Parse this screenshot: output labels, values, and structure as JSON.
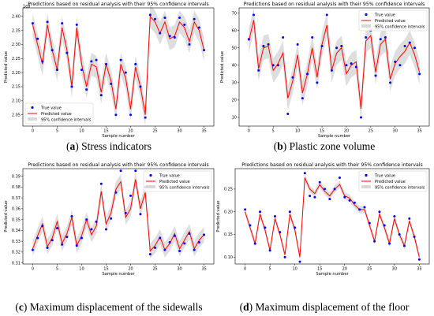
{
  "figure": {
    "captions": [
      {
        "label": "a",
        "text": "Stress indicators"
      },
      {
        "label": "b",
        "text": "Plastic zone volume"
      },
      {
        "label": "c",
        "text": "Maximum displacement of the sidewalls"
      },
      {
        "label": "d",
        "text": "Maximum displacement of the floor"
      }
    ]
  },
  "colors": {
    "true_value": "#0000ff",
    "predicted": "#ff0000",
    "band": "#c8c8c8"
  },
  "chart_data": [
    {
      "type": "line",
      "title": "Predictions based on residual analysis with their 95% confidence intervals",
      "xlabel": "Sample number",
      "ylabel": "Predicted value",
      "offset_label": "1e8",
      "xlim": [
        -2,
        37
      ],
      "ylim": [
        2.01,
        2.43
      ],
      "xticks": [
        0,
        5,
        10,
        15,
        20,
        25,
        30,
        35
      ],
      "yticks": [
        2.05,
        2.1,
        2.15,
        2.2,
        2.25,
        2.3,
        2.35,
        2.4
      ],
      "yticklabels": [
        "2.05",
        "2.10",
        "2.15",
        "2.20",
        "2.25",
        "2.30",
        "2.35",
        "2.40"
      ],
      "legend_position": "lower-left",
      "legend": [
        "True value",
        "Predicted value",
        "95% confidence intervals"
      ],
      "ci_half_width": 0.04,
      "series": [
        {
          "name": "True value",
          "values": [
            2.375,
            2.32,
            2.24,
            2.38,
            2.28,
            2.21,
            2.375,
            2.27,
            2.15,
            2.37,
            2.21,
            2.14,
            2.24,
            2.245,
            2.12,
            2.23,
            2.16,
            2.05,
            2.245,
            2.2,
            2.05,
            2.23,
            2.15,
            2.04,
            2.405,
            2.39,
            2.34,
            2.395,
            2.33,
            2.325,
            2.395,
            2.37,
            2.3,
            2.39,
            2.36,
            2.28
          ]
        },
        {
          "name": "Predicted value",
          "values": [
            2.37,
            2.3,
            2.23,
            2.37,
            2.28,
            2.21,
            2.36,
            2.28,
            2.15,
            2.36,
            2.23,
            2.15,
            2.23,
            2.22,
            2.13,
            2.23,
            2.17,
            2.07,
            2.23,
            2.18,
            2.07,
            2.22,
            2.15,
            2.05,
            2.4,
            2.38,
            2.34,
            2.38,
            2.32,
            2.33,
            2.38,
            2.36,
            2.31,
            2.38,
            2.35,
            2.28
          ]
        }
      ]
    },
    {
      "type": "line",
      "title": "Predictions based on residual analysis with their 95% confidence intervals",
      "xlabel": "Sample number",
      "ylabel": "Predicted value",
      "xlim": [
        -2,
        37
      ],
      "ylim": [
        5,
        73
      ],
      "xticks": [
        0,
        5,
        10,
        15,
        20,
        25,
        30,
        35
      ],
      "yticks": [
        10,
        20,
        30,
        40,
        50,
        60,
        70
      ],
      "yticklabels": [
        "10",
        "20",
        "30",
        "40",
        "50",
        "60",
        "70"
      ],
      "legend_position": "top-right",
      "legend": [
        "True value",
        "Predicted value",
        "95% confidence intervals"
      ],
      "ci_half_width": 7,
      "series": [
        {
          "name": "True value",
          "values": [
            55,
            69,
            37,
            51,
            52,
            40,
            40,
            56,
            12,
            33,
            52,
            21,
            35,
            56,
            30,
            51,
            69,
            37,
            50,
            51,
            40,
            41,
            39,
            10,
            56,
            60,
            34,
            55,
            56,
            30,
            42,
            40,
            51,
            53,
            50,
            35
          ]
        },
        {
          "name": "Predicted value",
          "values": [
            54,
            66,
            38,
            50,
            51,
            37,
            41,
            47,
            21,
            31,
            46,
            24,
            35,
            50,
            33,
            52,
            63,
            37,
            47,
            50,
            35,
            40,
            42,
            15,
            54,
            57,
            36,
            52,
            55,
            32,
            41,
            45,
            48,
            53,
            46,
            36
          ]
        }
      ]
    },
    {
      "type": "line",
      "title": "Predictions based on residual analysis with their 95% confidence intervals",
      "xlabel": "Sample number",
      "ylabel": "Predicted value",
      "xlim": [
        -2,
        37
      ],
      "ylim": [
        0.309,
        0.397
      ],
      "xticks": [
        0,
        5,
        10,
        15,
        20,
        25,
        30,
        35
      ],
      "yticks": [
        0.31,
        0.32,
        0.33,
        0.34,
        0.35,
        0.36,
        0.37,
        0.38,
        0.39
      ],
      "yticklabels": [
        "0.31",
        "0.32",
        "0.33",
        "0.34",
        "0.35",
        "0.36",
        "0.37",
        "0.38",
        "0.39"
      ],
      "legend_position": "top-right",
      "legend": [
        "True value",
        "Predicted value",
        "95% confidence intervals"
      ],
      "ci_half_width": 0.007,
      "series": [
        {
          "name": "True value",
          "values": [
            0.322,
            0.333,
            0.344,
            0.324,
            0.331,
            0.342,
            0.327,
            0.334,
            0.353,
            0.326,
            0.333,
            0.35,
            0.341,
            0.348,
            0.383,
            0.341,
            0.351,
            0.375,
            0.395,
            0.356,
            0.372,
            0.395,
            0.355,
            0.38,
            0.318,
            0.324,
            0.333,
            0.322,
            0.329,
            0.335,
            0.321,
            0.328,
            0.337,
            0.322,
            0.329,
            0.336
          ]
        },
        {
          "name": "Predicted value",
          "values": [
            0.323,
            0.335,
            0.346,
            0.325,
            0.333,
            0.348,
            0.328,
            0.337,
            0.352,
            0.326,
            0.335,
            0.35,
            0.336,
            0.344,
            0.376,
            0.346,
            0.356,
            0.378,
            0.385,
            0.352,
            0.36,
            0.387,
            0.36,
            0.375,
            0.321,
            0.326,
            0.334,
            0.322,
            0.328,
            0.337,
            0.323,
            0.331,
            0.339,
            0.323,
            0.331,
            0.336
          ]
        }
      ]
    },
    {
      "type": "line",
      "title": "Predictions based on residual analysis with their 95% confidence intervals",
      "xlabel": "Sample number",
      "ylabel": "Predicted value",
      "xlim": [
        -2,
        37
      ],
      "ylim": [
        0.085,
        0.295
      ],
      "xticks": [
        0,
        5,
        10,
        15,
        20,
        25,
        30,
        35
      ],
      "yticks": [
        0.1,
        0.15,
        0.2,
        0.25
      ],
      "yticklabels": [
        "0.10",
        "0.15",
        "0.20",
        "0.25"
      ],
      "legend_position": "top-right",
      "legend": [
        "True value",
        "Predicted value",
        "95% confidence intervals"
      ],
      "ci_half_width": 0.008,
      "series": [
        {
          "name": "True value",
          "values": [
            0.205,
            0.17,
            0.13,
            0.2,
            0.165,
            0.115,
            0.19,
            0.155,
            0.1,
            0.2,
            0.165,
            0.09,
            0.285,
            0.235,
            0.232,
            0.265,
            0.25,
            0.228,
            0.25,
            0.275,
            0.232,
            0.225,
            0.22,
            0.205,
            0.21,
            0.175,
            0.135,
            0.2,
            0.17,
            0.13,
            0.19,
            0.15,
            0.125,
            0.185,
            0.145,
            0.095
          ]
        },
        {
          "name": "Predicted value",
          "values": [
            0.2,
            0.165,
            0.13,
            0.195,
            0.16,
            0.115,
            0.185,
            0.15,
            0.105,
            0.195,
            0.16,
            0.1,
            0.275,
            0.25,
            0.24,
            0.26,
            0.245,
            0.235,
            0.25,
            0.26,
            0.235,
            0.23,
            0.215,
            0.205,
            0.205,
            0.17,
            0.135,
            0.195,
            0.165,
            0.13,
            0.185,
            0.15,
            0.125,
            0.18,
            0.145,
            0.1
          ]
        }
      ]
    }
  ]
}
